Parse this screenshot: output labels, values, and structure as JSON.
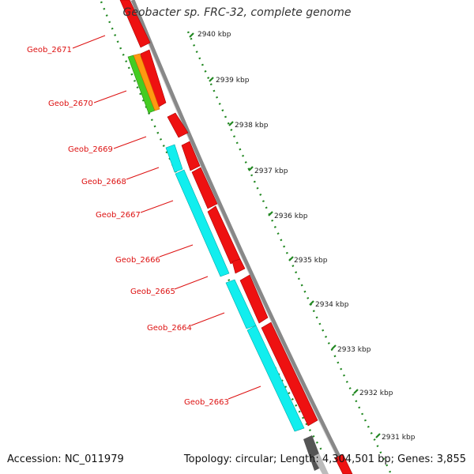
{
  "title": "Geobacter sp. FRC-32, complete genome",
  "footer": {
    "accession": "Accession: NC_011979",
    "info": "Topology: circular; Length: 4,304,501 bp; Genes: 3,855"
  },
  "colors": {
    "forward_cds": "#ee1111",
    "reverse_cds": "#11eeee",
    "rna_green": "#44cc22",
    "rna_orange": "#ff9911",
    "backbone": "#888888",
    "tick": "#228822",
    "gene_label": "#dd1111",
    "dark_feature": "#555555"
  },
  "genes": [
    {
      "label": "Geob_2671"
    },
    {
      "label": "Geob_2670"
    },
    {
      "label": "Geob_2669"
    },
    {
      "label": "Geob_2668"
    },
    {
      "label": "Geob_2667"
    },
    {
      "label": "Geob_2666"
    },
    {
      "label": "Geob_2665"
    },
    {
      "label": "Geob_2664"
    },
    {
      "label": "Geob_2663"
    }
  ],
  "kbp_ticks": [
    {
      "label": "2940 kbp"
    },
    {
      "label": "2939 kbp"
    },
    {
      "label": "2938 kbp"
    },
    {
      "label": "2937 kbp"
    },
    {
      "label": "2936 kbp"
    },
    {
      "label": "2935 kbp"
    },
    {
      "label": "2934 kbp"
    },
    {
      "label": "2933 kbp"
    },
    {
      "label": "2932 kbp"
    },
    {
      "label": "2931 kbp"
    }
  ]
}
